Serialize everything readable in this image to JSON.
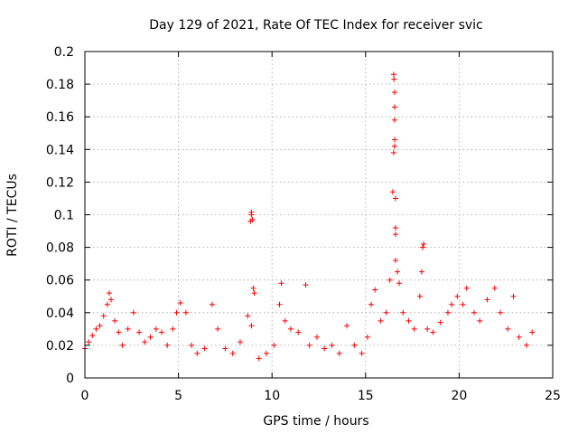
{
  "chart_data": {
    "type": "scatter",
    "title": "Day 129 of 2021, Rate Of TEC Index for receiver svic",
    "xlabel": "GPS time / hours",
    "ylabel": "ROTI / TECUs",
    "xlim": [
      0,
      25
    ],
    "ylim": [
      0,
      0.2
    ],
    "x_ticks": [
      0,
      5,
      10,
      15,
      20,
      25
    ],
    "y_ticks": [
      0,
      0.02,
      0.04,
      0.06,
      0.08,
      0.1,
      0.12,
      0.14,
      0.16,
      0.18,
      0.2
    ],
    "x_tick_labels": [
      "0",
      "5",
      "10",
      "15",
      "20",
      "25"
    ],
    "y_tick_labels": [
      "0",
      "0.02",
      "0.04",
      "0.06",
      "0.08",
      "0.1",
      "0.12",
      "0.14",
      "0.16",
      "0.18",
      "0.2"
    ],
    "grid": true,
    "marker": "plus",
    "color": "#ff0000",
    "series": [
      {
        "points": [
          [
            0.0,
            0.018
          ],
          [
            0.2,
            0.022
          ],
          [
            0.4,
            0.026
          ],
          [
            0.6,
            0.03
          ],
          [
            0.8,
            0.032
          ],
          [
            1.0,
            0.038
          ],
          [
            1.2,
            0.045
          ],
          [
            1.3,
            0.052
          ],
          [
            1.4,
            0.048
          ],
          [
            1.6,
            0.035
          ],
          [
            1.8,
            0.028
          ],
          [
            2.0,
            0.02
          ],
          [
            2.3,
            0.03
          ],
          [
            2.6,
            0.04
          ],
          [
            2.9,
            0.028
          ],
          [
            3.2,
            0.022
          ],
          [
            3.5,
            0.025
          ],
          [
            3.8,
            0.03
          ],
          [
            4.1,
            0.028
          ],
          [
            4.4,
            0.02
          ],
          [
            4.7,
            0.03
          ],
          [
            4.9,
            0.04
          ],
          [
            5.1,
            0.046
          ],
          [
            5.4,
            0.04
          ],
          [
            5.7,
            0.02
          ],
          [
            6.0,
            0.015
          ],
          [
            6.4,
            0.018
          ],
          [
            6.8,
            0.045
          ],
          [
            7.1,
            0.03
          ],
          [
            7.5,
            0.018
          ],
          [
            7.9,
            0.015
          ],
          [
            8.3,
            0.022
          ],
          [
            8.7,
            0.038
          ],
          [
            8.9,
            0.032
          ],
          [
            8.85,
            0.096
          ],
          [
            8.9,
            0.1
          ],
          [
            8.95,
            0.097
          ],
          [
            8.9,
            0.1015
          ],
          [
            9.0,
            0.055
          ],
          [
            9.05,
            0.052
          ],
          [
            9.3,
            0.012
          ],
          [
            9.7,
            0.015
          ],
          [
            10.1,
            0.02
          ],
          [
            10.4,
            0.045
          ],
          [
            10.5,
            0.058
          ],
          [
            10.7,
            0.035
          ],
          [
            11.0,
            0.03
          ],
          [
            11.4,
            0.028
          ],
          [
            11.8,
            0.057
          ],
          [
            12.0,
            0.02
          ],
          [
            12.4,
            0.025
          ],
          [
            12.8,
            0.018
          ],
          [
            13.2,
            0.02
          ],
          [
            13.6,
            0.015
          ],
          [
            14.0,
            0.032
          ],
          [
            14.4,
            0.02
          ],
          [
            14.8,
            0.015
          ],
          [
            15.1,
            0.025
          ],
          [
            15.3,
            0.045
          ],
          [
            15.5,
            0.054
          ],
          [
            15.8,
            0.035
          ],
          [
            16.1,
            0.04
          ],
          [
            16.3,
            0.06
          ],
          [
            16.45,
            0.114
          ],
          [
            16.5,
            0.138
          ],
          [
            16.5,
            0.186
          ],
          [
            16.52,
            0.183
          ],
          [
            16.55,
            0.175
          ],
          [
            16.55,
            0.166
          ],
          [
            16.55,
            0.158
          ],
          [
            16.55,
            0.146
          ],
          [
            16.55,
            0.142
          ],
          [
            16.6,
            0.11
          ],
          [
            16.6,
            0.092
          ],
          [
            16.6,
            0.088
          ],
          [
            16.6,
            0.072
          ],
          [
            16.7,
            0.065
          ],
          [
            16.8,
            0.058
          ],
          [
            17.0,
            0.04
          ],
          [
            17.3,
            0.035
          ],
          [
            17.6,
            0.03
          ],
          [
            17.9,
            0.05
          ],
          [
            18.0,
            0.065
          ],
          [
            18.05,
            0.08
          ],
          [
            18.1,
            0.082
          ],
          [
            18.3,
            0.03
          ],
          [
            18.6,
            0.028
          ],
          [
            19.0,
            0.034
          ],
          [
            19.4,
            0.04
          ],
          [
            19.6,
            0.045
          ],
          [
            19.9,
            0.05
          ],
          [
            20.2,
            0.045
          ],
          [
            20.4,
            0.055
          ],
          [
            20.8,
            0.04
          ],
          [
            21.1,
            0.035
          ],
          [
            21.5,
            0.048
          ],
          [
            21.9,
            0.055
          ],
          [
            22.2,
            0.04
          ],
          [
            22.6,
            0.03
          ],
          [
            22.9,
            0.05
          ],
          [
            23.2,
            0.025
          ],
          [
            23.6,
            0.02
          ],
          [
            23.9,
            0.028
          ]
        ]
      }
    ]
  }
}
